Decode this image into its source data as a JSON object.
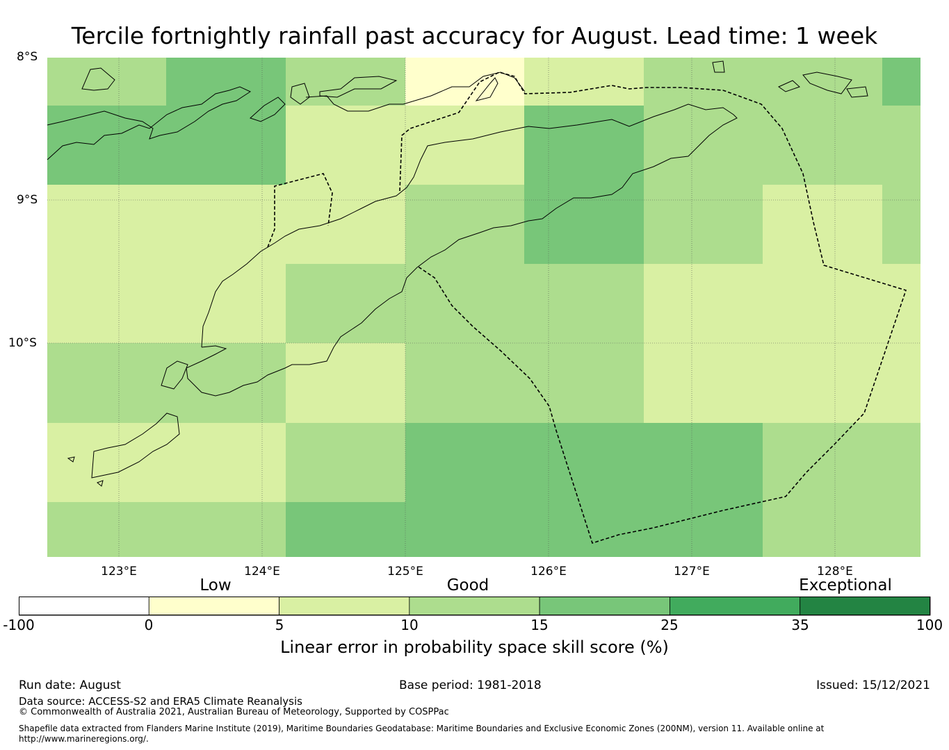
{
  "title": "Tercile fortnightly rainfall past accuracy for August. Lead time: 1 week",
  "map": {
    "lat_labels": [
      "8°S",
      "9°S",
      "10°S"
    ],
    "lon_labels": [
      "123°E",
      "124°E",
      "125°E",
      "126°E",
      "127°E",
      "128°E"
    ],
    "lon_range": [
      122.5,
      128.6
    ],
    "lat_range": [
      -8.0,
      -11.5
    ],
    "grid_cell_scores": [
      [
        10,
        20,
        10,
        2,
        7,
        13,
        13,
        20
      ],
      [
        20,
        20,
        7,
        7,
        20,
        13,
        13,
        13
      ],
      [
        7,
        7,
        7,
        13,
        20,
        13,
        7,
        13
      ],
      [
        7,
        7,
        13,
        13,
        13,
        7,
        7,
        7
      ],
      [
        13,
        13,
        7,
        13,
        13,
        7,
        7,
        7
      ],
      [
        7,
        7,
        13,
        20,
        20,
        20,
        13,
        13
      ],
      [
        13,
        13,
        20,
        20,
        20,
        20,
        13,
        13
      ]
    ]
  },
  "colorbar": {
    "categories": [
      "Low",
      "Good",
      "Exceptional"
    ],
    "ticks": [
      "-100",
      "0",
      "5",
      "10",
      "15",
      "25",
      "35",
      "100"
    ],
    "colors": [
      "#ffffff",
      "#ffffcc",
      "#d9f0a3",
      "#addd8e",
      "#78c679",
      "#41ab5d",
      "#238443"
    ],
    "label": "Linear error in probability space skill score (%)"
  },
  "footer": {
    "run_date": "Run date: August",
    "base_period": "Base period: 1981-2018",
    "issued": "Issued: 15/12/2021",
    "data_source": "Data source: ACCESS-S2 and ERA5 Climate Reanalysis",
    "copyright": "© Commonwealth of Australia 2021, Australian Bureau of Meteorology, Supported by COSPPac",
    "shapefile": "Shapefile data extracted from Flanders Marine Institute (2019), Maritime Boundaries Geodatabase: Maritime Boundaries and Exclusive Economic Zones (200NM), version 11. Available online at http://www.marineregions.org/."
  }
}
